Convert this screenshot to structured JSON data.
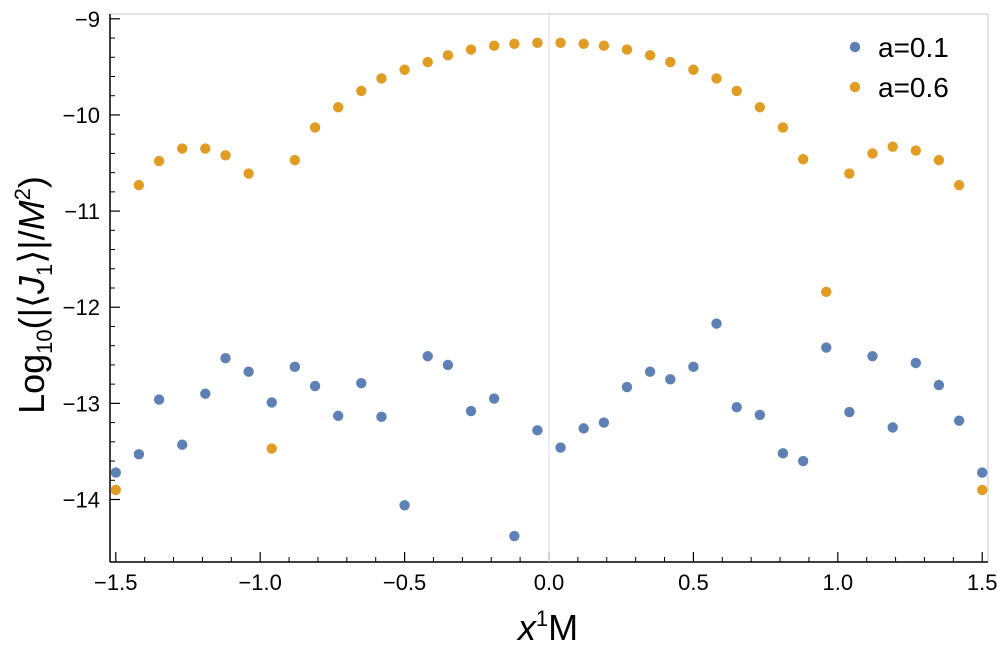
{
  "chart_data": {
    "type": "scatter",
    "xlabel": "x¹M",
    "ylabel": "Log₁₀(|⟨J₁⟩|/M²)",
    "xlim": [
      -1.52,
      1.52
    ],
    "ylim": [
      -14.65,
      -8.95
    ],
    "xticks": [
      -1.5,
      -1.0,
      -0.5,
      0.0,
      0.5,
      1.0,
      1.5
    ],
    "xtick_labels": [
      "−1.5",
      "−1.0",
      "−0.5",
      "0.0",
      "0.5",
      "1.0",
      "1.5"
    ],
    "yticks": [
      -14,
      -13,
      -12,
      -11,
      -10,
      -9
    ],
    "ytick_labels": [
      "−14",
      "−13",
      "−12",
      "−11",
      "−10",
      "−9"
    ],
    "grid": false,
    "legend_position": "top-right",
    "series": [
      {
        "name": "a=0.1",
        "color": "#5E81B5",
        "x": [
          -1.5,
          -1.42,
          -1.35,
          -1.27,
          -1.19,
          -1.12,
          -1.04,
          -0.96,
          -0.88,
          -0.81,
          -0.73,
          -0.65,
          -0.58,
          -0.5,
          -0.42,
          -0.35,
          -0.27,
          -0.19,
          -0.12,
          -0.04,
          0.04,
          0.12,
          0.19,
          0.27,
          0.35,
          0.42,
          0.5,
          0.58,
          0.65,
          0.73,
          0.81,
          0.88,
          0.96,
          1.04,
          1.12,
          1.19,
          1.27,
          1.35,
          1.42,
          1.5
        ],
        "y": [
          -13.72,
          -13.53,
          -12.96,
          -13.43,
          -12.9,
          -12.53,
          -12.67,
          -12.99,
          -12.62,
          -12.82,
          -13.13,
          -12.79,
          -13.14,
          -14.06,
          -12.51,
          -12.6,
          -13.08,
          -12.95,
          -14.38,
          -13.28,
          -13.46,
          -13.26,
          -13.2,
          -12.83,
          -12.67,
          -12.75,
          -12.62,
          -12.17,
          -13.04,
          -13.12,
          -13.52,
          -13.6,
          -12.42,
          -13.09,
          -12.51,
          -13.25,
          -12.58,
          -12.81,
          -13.18,
          -13.72
        ]
      },
      {
        "name": "a=0.6",
        "color": "#E19C24",
        "x": [
          -1.5,
          -1.42,
          -1.35,
          -1.27,
          -1.19,
          -1.12,
          -1.04,
          -0.96,
          -0.88,
          -0.81,
          -0.73,
          -0.65,
          -0.58,
          -0.5,
          -0.42,
          -0.35,
          -0.27,
          -0.19,
          -0.12,
          -0.04,
          0.04,
          0.12,
          0.19,
          0.27,
          0.35,
          0.42,
          0.5,
          0.58,
          0.65,
          0.73,
          0.81,
          0.88,
          0.96,
          1.04,
          1.12,
          1.19,
          1.27,
          1.35,
          1.42,
          1.5
        ],
        "y": [
          -13.9,
          -10.73,
          -10.48,
          -10.35,
          -10.35,
          -10.42,
          -10.61,
          -13.47,
          -10.47,
          -10.13,
          -9.92,
          -9.75,
          -9.62,
          -9.53,
          -9.45,
          -9.38,
          -9.32,
          -9.28,
          -9.26,
          -9.25,
          -9.25,
          -9.26,
          -9.28,
          -9.32,
          -9.38,
          -9.45,
          -9.53,
          -9.62,
          -9.75,
          -9.92,
          -10.13,
          -10.46,
          -11.84,
          -10.61,
          -10.4,
          -10.33,
          -10.37,
          -10.47,
          -10.73,
          -13.9
        ]
      }
    ]
  }
}
